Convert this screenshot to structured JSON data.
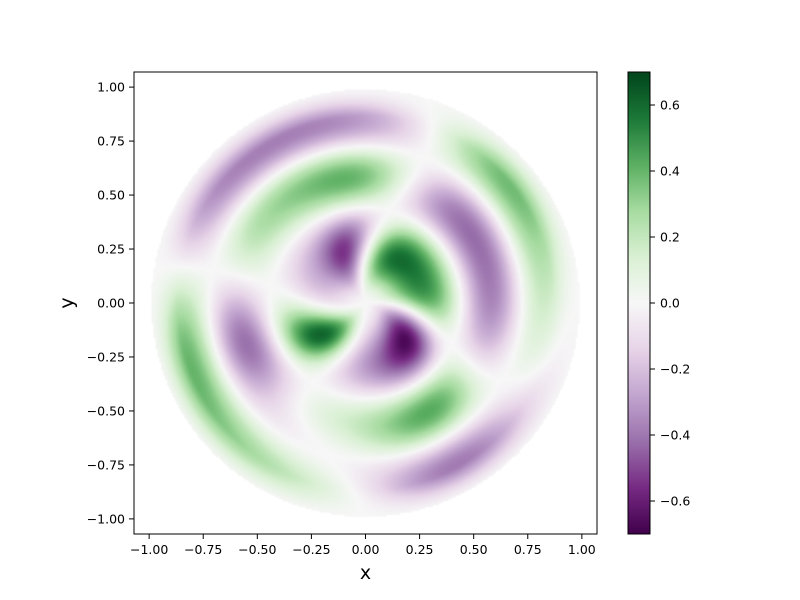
{
  "chart_data": {
    "type": "heatmap",
    "title": "",
    "xlabel": "x",
    "ylabel": "y",
    "xlim": [
      -1.07,
      1.07
    ],
    "ylim": [
      -1.07,
      1.07
    ],
    "x_ticks": [
      -1.0,
      -0.75,
      -0.5,
      -0.25,
      0.0,
      0.25,
      0.5,
      0.75,
      1.0
    ],
    "x_tick_labels": [
      "−1.00",
      "−0.75",
      "−0.50",
      "−0.25",
      "0.00",
      "0.25",
      "0.50",
      "0.75",
      "1.00"
    ],
    "y_ticks": [
      1.0,
      0.75,
      0.5,
      0.25,
      0.0,
      -0.25,
      -0.5,
      -0.75,
      -1.0
    ],
    "y_tick_labels": [
      "1.00",
      "0.75",
      "0.50",
      "0.25",
      "0.00",
      "−0.25",
      "−0.50",
      "−0.75",
      "−1.00"
    ],
    "grid": false,
    "domain": "unit disk (radius 1)",
    "field": {
      "description": "circular-membrane mode pattern: J2 Bessel radial profile with two angular lobes (sin 2θ) plus a rotating spiral component",
      "radial_zeros_inside": 3,
      "angular_order": 2,
      "max_abs_value": 0.7
    },
    "colormap": {
      "name": "PRGn",
      "stops": [
        "#40004b",
        "#762a83",
        "#9970ab",
        "#c2a5cf",
        "#e7d4e8",
        "#f7f7f7",
        "#d9f0d3",
        "#a6dba0",
        "#5aae61",
        "#1b7837",
        "#00441b"
      ]
    },
    "colorbar": {
      "vmin": -0.7,
      "vmax": 0.7,
      "ticks": [
        0.6,
        0.4,
        0.2,
        0.0,
        -0.2,
        -0.4,
        -0.6
      ],
      "tick_labels": [
        "0.6",
        "0.4",
        "0.2",
        "0.0",
        "−0.2",
        "−0.4",
        "−0.6"
      ]
    }
  }
}
